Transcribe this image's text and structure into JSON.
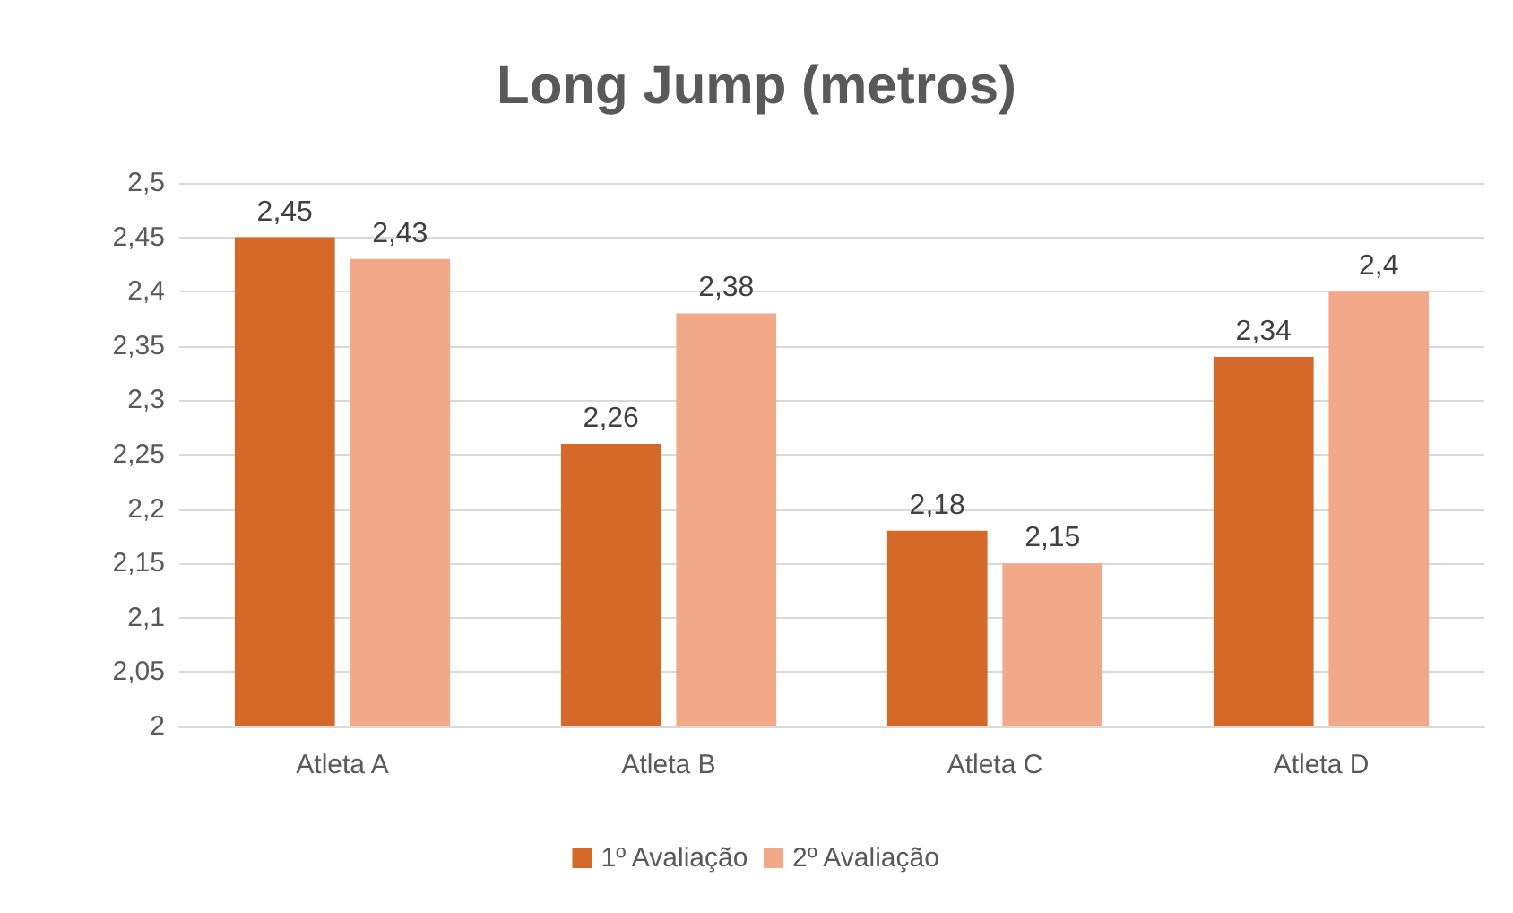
{
  "chart_data": {
    "type": "bar",
    "title": "Long Jump (metros)",
    "categories": [
      "Atleta A",
      "Atleta B",
      "Atleta C",
      "Atleta D"
    ],
    "series": [
      {
        "name": "1º Avaliação",
        "color": "#d5692a",
        "values": [
          2.45,
          2.26,
          2.18,
          2.34
        ],
        "value_labels": [
          "2,45",
          "2,26",
          "2,18",
          "2,34"
        ]
      },
      {
        "name": "2º Avaliação",
        "color": "#f2a98a",
        "values": [
          2.43,
          2.38,
          2.15,
          2.4
        ],
        "value_labels": [
          "2,43",
          "2,38",
          "2,15",
          "2,4"
        ]
      }
    ],
    "ylim": [
      2,
      2.5
    ],
    "yticks": [
      {
        "value": 2,
        "label": "2"
      },
      {
        "value": 2.05,
        "label": "2,05"
      },
      {
        "value": 2.1,
        "label": "2,1"
      },
      {
        "value": 2.15,
        "label": "2,15"
      },
      {
        "value": 2.2,
        "label": "2,2"
      },
      {
        "value": 2.25,
        "label": "2,25"
      },
      {
        "value": 2.3,
        "label": "2,3"
      },
      {
        "value": 2.35,
        "label": "2,35"
      },
      {
        "value": 2.4,
        "label": "2,4"
      },
      {
        "value": 2.45,
        "label": "2,45"
      },
      {
        "value": 2.5,
        "label": "2,5"
      }
    ],
    "grid": "y",
    "legend": "bottom"
  }
}
